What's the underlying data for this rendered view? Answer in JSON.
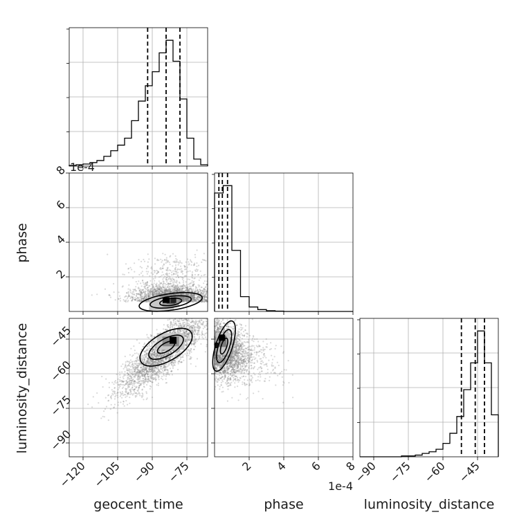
{
  "chart_data": {
    "type": "corner",
    "parameters": [
      "geocent_time",
      "phase",
      "luminosity_distance"
    ],
    "offset_labels": {
      "phase": "1e-4"
    },
    "ticks": {
      "geocent_time": [
        -120,
        -105,
        -90,
        -75
      ],
      "geocent_time_labels": [
        "−120",
        "−105",
        "−90",
        "−75"
      ],
      "phase": [
        2,
        4,
        6,
        8
      ],
      "phase_labels": [
        "2",
        "4",
        "6",
        "8"
      ],
      "luminosity_distance": [
        -90,
        -75,
        -60,
        -45
      ],
      "luminosity_distance_labels": [
        "−90",
        "−75",
        "−60",
        "−45"
      ]
    },
    "ranges": {
      "geocent_time": [
        -126,
        -66
      ],
      "phase": [
        0,
        8
      ],
      "luminosity_distance": [
        -96,
        -36
      ]
    },
    "histograms": {
      "geocent_time": {
        "edges": [
          -126,
          -123,
          -120,
          -117,
          -114,
          -111,
          -108,
          -105,
          -102,
          -99,
          -96,
          -93,
          -90,
          -87,
          -84,
          -81,
          -78,
          -75,
          -72,
          -69,
          -66
        ],
        "counts": [
          1,
          2,
          3,
          5,
          8,
          14,
          22,
          30,
          40,
          65,
          93,
          115,
          135,
          162,
          180,
          150,
          96,
          40,
          10,
          2
        ]
      },
      "phase": {
        "edges": [
          0,
          0.5,
          1,
          1.5,
          2,
          2.5,
          3,
          3.5,
          4,
          4.5,
          5,
          5.5,
          6,
          6.5,
          7,
          7.5,
          8
        ],
        "counts": [
          320,
          340,
          165,
          40,
          12,
          5,
          2,
          1,
          0,
          0,
          0,
          0,
          0,
          0,
          0,
          0
        ]
      },
      "luminosity_distance": {
        "edges": [
          -96,
          -93,
          -90,
          -87,
          -84,
          -81,
          -78,
          -75,
          -72,
          -69,
          -66,
          -63,
          -60,
          -57,
          -54,
          -51,
          -48,
          -45,
          -42,
          -39,
          -36
        ],
        "counts": [
          0,
          0,
          0,
          0,
          0,
          0,
          1,
          1,
          2,
          4,
          6,
          9,
          16,
          28,
          48,
          80,
          112,
          150,
          112,
          50
        ]
      }
    },
    "quantiles": {
      "geocent_time": [
        -92,
        -84,
        -78
      ],
      "phase": [
        0.25,
        0.45,
        0.75
      ],
      "luminosity_distance": [
        -52,
        -46,
        -42
      ]
    },
    "grid": true,
    "point_color": "#808080",
    "line_color": "#000000"
  }
}
